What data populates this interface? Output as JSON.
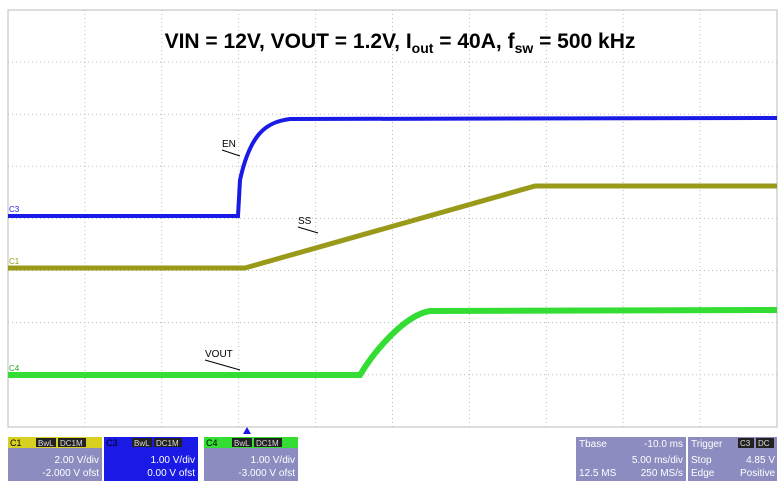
{
  "title": {
    "parts": [
      "VIN = 12V, VOUT = 1.2V, I",
      "out",
      " = 40A, f",
      "sw",
      " = 500 kHz"
    ]
  },
  "traces": [
    {
      "channel": "C3",
      "label": "EN"
    },
    {
      "channel": "C1",
      "label": "SS"
    },
    {
      "channel": "C4",
      "label": "VOUT"
    }
  ],
  "channels": [
    {
      "name": "C1",
      "tags": [
        "BwL",
        "DC1M"
      ],
      "scale": "2.00 V/div",
      "offset": "-2.000 V ofst"
    },
    {
      "name": "C3",
      "tags": [
        "BwL",
        "DC1M"
      ],
      "scale": "1.00 V/div",
      "offset": "0.00 V ofst"
    },
    {
      "name": "C4",
      "tags": [
        "BwL",
        "DC1M"
      ],
      "scale": "1.00 V/div",
      "offset": "-3.000 V ofst"
    }
  ],
  "timebase": {
    "label": "Tbase",
    "delay": "-10.0 ms",
    "scale": "5.00 ms/div",
    "points": "12.5 MS",
    "rate": "250 MS/s"
  },
  "trigger": {
    "label": "Trigger",
    "source": "C3",
    "coupling": "DC",
    "mode": "Stop",
    "level": "4.85 V",
    "type": "Edge",
    "slope": "Positive"
  }
}
